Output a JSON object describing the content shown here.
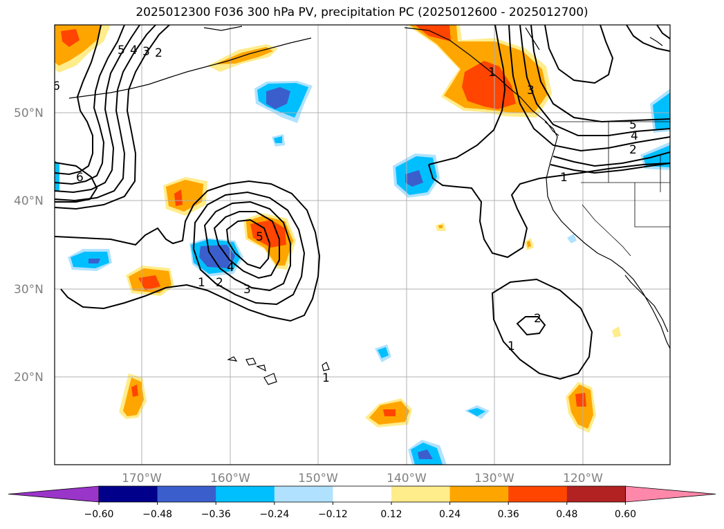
{
  "title": "2025012300 F036 300 hPa PV, precipitation PC (2025012600 - 2025012700)",
  "map": {
    "lat_labels": [
      "50°N",
      "40°N",
      "30°N",
      "20°N"
    ],
    "lon_labels": [
      "170°W",
      "160°W",
      "150°W",
      "140°W",
      "130°W",
      "120°W"
    ],
    "contour_labels": [
      "5",
      "4",
      "3",
      "2",
      "6",
      "6",
      "1",
      "2",
      "3",
      "4",
      "5",
      "1",
      "3",
      "5",
      "4",
      "2",
      "1",
      "2",
      "1",
      "1"
    ]
  },
  "colorbar": {
    "ticks": [
      "−0.60",
      "−0.48",
      "−0.36",
      "−0.24",
      "−0.12",
      "0.12",
      "0.24",
      "0.36",
      "0.48",
      "0.60"
    ],
    "colors": [
      "#9a35c9",
      "#00008b",
      "#3a5fcd",
      "#00bfff",
      "#b0e2ff",
      "#ffffff",
      "#ffec8b",
      "#ffa500",
      "#ff4500",
      "#b22222",
      "#ff88aa"
    ]
  }
}
